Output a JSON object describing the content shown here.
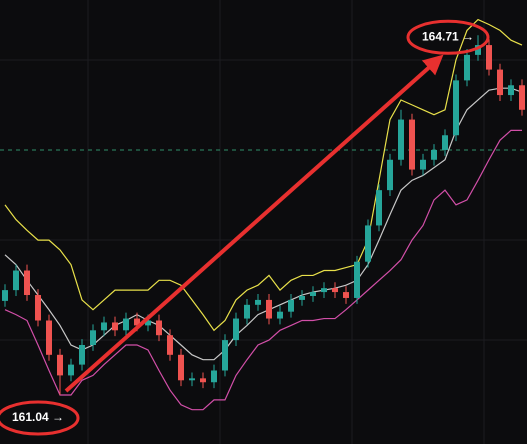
{
  "chart_data": {
    "type": "candlestick",
    "ylim": [
      160.54,
      165.07
    ],
    "up_color": "#26a69a",
    "down_color": "#ef5350",
    "open": [
      162.0,
      162.11,
      162.31,
      162.06,
      161.8,
      161.45,
      161.24,
      161.35,
      161.55,
      161.7,
      161.78,
      161.7,
      161.82,
      161.75,
      161.8,
      161.65,
      161.45,
      161.19,
      161.21,
      161.17,
      161.29,
      161.6,
      161.82,
      161.96,
      162.01,
      161.82,
      161.89,
      162.01,
      162.05,
      162.09,
      162.13,
      162.09,
      162.03,
      162.4,
      162.77,
      163.13,
      163.44,
      163.85,
      163.34,
      163.44,
      163.54,
      163.69,
      164.25,
      164.51,
      164.61,
      164.36,
      164.1,
      164.2
    ],
    "high": [
      162.17,
      162.37,
      162.37,
      162.12,
      161.86,
      161.51,
      161.41,
      161.61,
      161.76,
      161.84,
      161.84,
      161.88,
      161.88,
      161.86,
      161.86,
      161.71,
      161.51,
      161.27,
      161.27,
      161.35,
      161.66,
      161.88,
      162.02,
      162.07,
      162.07,
      161.95,
      162.07,
      162.11,
      162.15,
      162.19,
      162.19,
      162.15,
      162.46,
      162.83,
      163.19,
      163.5,
      163.95,
      163.91,
      163.5,
      163.6,
      163.75,
      164.31,
      164.57,
      164.71,
      164.67,
      164.42,
      164.26,
      164.26
    ],
    "low": [
      161.94,
      162.05,
      162.0,
      161.74,
      161.39,
      161.04,
      161.18,
      161.29,
      161.49,
      161.64,
      161.64,
      161.64,
      161.69,
      161.69,
      161.59,
      161.39,
      161.13,
      161.13,
      161.11,
      161.11,
      161.23,
      161.54,
      161.76,
      161.9,
      161.76,
      161.76,
      161.83,
      161.95,
      161.99,
      162.03,
      162.03,
      161.97,
      161.97,
      162.34,
      162.71,
      163.07,
      163.38,
      163.28,
      163.28,
      163.38,
      163.48,
      163.63,
      164.19,
      164.45,
      164.3,
      164.04,
      164.04,
      163.89
    ],
    "close": [
      162.11,
      162.31,
      162.06,
      161.8,
      161.45,
      161.24,
      161.35,
      161.55,
      161.7,
      161.78,
      161.7,
      161.82,
      161.75,
      161.8,
      161.65,
      161.45,
      161.19,
      161.21,
      161.17,
      161.29,
      161.6,
      161.82,
      161.96,
      162.01,
      161.82,
      161.89,
      162.01,
      162.05,
      162.09,
      162.13,
      162.09,
      162.03,
      162.4,
      162.77,
      163.13,
      163.44,
      163.85,
      163.34,
      163.44,
      163.54,
      163.69,
      164.25,
      164.51,
      164.61,
      164.36,
      164.1,
      164.2,
      163.95
    ],
    "overlays": [
      {
        "color": "#e8e04a",
        "values": [
          162.98,
          162.83,
          162.72,
          162.62,
          162.62,
          162.52,
          162.37,
          162.01,
          161.91,
          162.01,
          162.11,
          162.11,
          162.11,
          162.11,
          162.21,
          162.21,
          162.16,
          162.01,
          161.86,
          161.7,
          161.8,
          162.01,
          162.11,
          162.16,
          162.26,
          162.11,
          162.21,
          162.26,
          162.26,
          162.31,
          162.31,
          162.34,
          162.37,
          162.62,
          163.23,
          163.85,
          164.05,
          164.0,
          163.95,
          163.9,
          163.95,
          164.46,
          164.76,
          164.87,
          164.82,
          164.76,
          164.66,
          164.61
        ]
      },
      {
        "color": "#c8c8c8",
        "values": [
          162.47,
          162.37,
          162.21,
          162.06,
          161.91,
          161.75,
          161.55,
          161.5,
          161.55,
          161.65,
          161.75,
          161.8,
          161.86,
          161.8,
          161.75,
          161.65,
          161.55,
          161.45,
          161.4,
          161.4,
          161.5,
          161.65,
          161.75,
          161.86,
          161.91,
          161.96,
          162.01,
          162.06,
          162.09,
          162.11,
          162.13,
          162.16,
          162.21,
          162.37,
          162.62,
          162.88,
          163.13,
          163.23,
          163.28,
          163.36,
          163.44,
          163.74,
          163.95,
          164.05,
          164.15,
          164.17,
          164.17,
          164.13
        ]
      },
      {
        "color": "#d24fa8",
        "values": [
          161.91,
          161.86,
          161.8,
          161.55,
          161.29,
          161.04,
          161.04,
          161.19,
          161.24,
          161.35,
          161.45,
          161.55,
          161.55,
          161.5,
          161.29,
          161.09,
          160.94,
          160.89,
          160.89,
          160.99,
          160.99,
          161.24,
          161.4,
          161.55,
          161.6,
          161.7,
          161.75,
          161.8,
          161.8,
          161.82,
          161.82,
          161.91,
          162.01,
          162.11,
          162.21,
          162.31,
          162.42,
          162.62,
          162.77,
          163.03,
          163.13,
          162.98,
          163.03,
          163.23,
          163.44,
          163.64,
          163.74,
          163.74
        ]
      }
    ],
    "reference_line": {
      "value": 163.54,
      "color": "#2f8f6a"
    },
    "annotations": [
      {
        "value": 161.04,
        "index": 5,
        "label": "161.04 →"
      },
      {
        "value": 164.71,
        "index": 43,
        "label": "164.71 →"
      }
    ],
    "arrow_color": "#e8302f"
  }
}
